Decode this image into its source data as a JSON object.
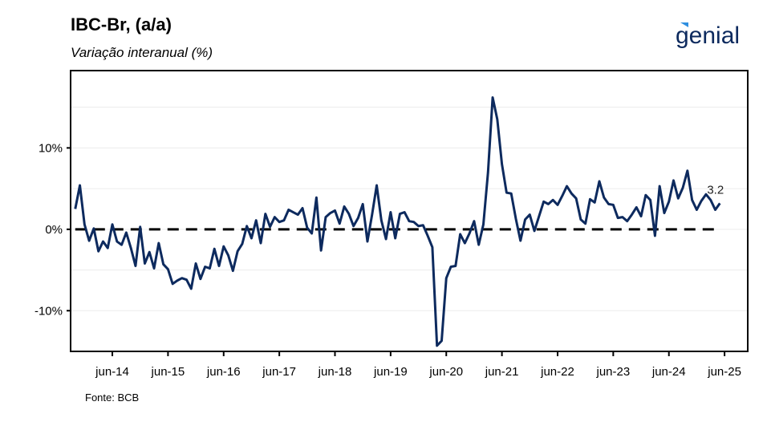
{
  "header": {
    "title": "IBC-Br, (a/a)",
    "subtitle": "Variação interanual (%)",
    "logo_text": "genial"
  },
  "footer": {
    "source": "Fonte: BCB"
  },
  "colors": {
    "line": "#0d2a5e",
    "zero_line": "#000000",
    "grid": "#ececec",
    "logo": "#0d2a5e",
    "logo_accent": "#2f8fe0"
  },
  "chart_data": {
    "type": "line",
    "title": "IBC-Br, (a/a)",
    "subtitle": "Variação interanual (%)",
    "xlabel": "",
    "ylabel": "",
    "x_ticks": [
      "jun-14",
      "jun-15",
      "jun-16",
      "jun-17",
      "jun-18",
      "jun-19",
      "jun-20",
      "jun-21",
      "jun-22",
      "jun-23",
      "jun-24",
      "jun-25"
    ],
    "y_ticks": [
      10,
      0,
      -10
    ],
    "y_tick_labels": [
      "10%",
      "0%",
      "-10%"
    ],
    "ylim": [
      -15,
      19.5
    ],
    "xlim": [
      "2013-09",
      "2025-11"
    ],
    "grid": "horizontal",
    "zero_line": "dashed",
    "last_value_label": "3.2",
    "series": [
      {
        "start": "2013-10",
        "frequency": "monthly",
        "values": [
          2.5,
          5.4,
          0.6,
          -1.4,
          0.1,
          -2.7,
          -1.5,
          -2.3,
          0.6,
          -1.5,
          -1.9,
          -0.4,
          -2.3,
          -4.5,
          0.3,
          -4.2,
          -2.8,
          -4.8,
          -1.7,
          -4.3,
          -4.9,
          -6.7,
          -6.3,
          -6.0,
          -6.2,
          -7.3,
          -4.2,
          -6.1,
          -4.6,
          -4.8,
          -2.4,
          -4.5,
          -2.1,
          -3.2,
          -5.1,
          -2.7,
          -1.8,
          0.4,
          -1.1,
          1.1,
          -1.7,
          1.9,
          0.3,
          1.5,
          0.9,
          1.1,
          2.4,
          2.1,
          1.8,
          2.6,
          0.2,
          -0.5,
          3.9,
          -2.6,
          1.5,
          2.0,
          2.3,
          0.7,
          2.8,
          1.9,
          0.4,
          1.4,
          3.1,
          -1.5,
          1.8,
          5.4,
          1.1,
          -1.2,
          2.1,
          -1.1,
          1.9,
          2.1,
          1.0,
          0.9,
          0.4,
          0.5,
          -0.8,
          -2.2,
          -14.3,
          -13.7,
          -6.0,
          -4.6,
          -4.5,
          -0.6,
          -1.7,
          -0.5,
          1.0,
          -1.9,
          0.6,
          7.0,
          16.2,
          13.5,
          8.0,
          4.5,
          4.4,
          1.3,
          -1.4,
          1.2,
          1.8,
          -0.2,
          1.6,
          3.4,
          3.1,
          3.6,
          3.0,
          4.1,
          5.3,
          4.4,
          3.8,
          1.2,
          0.7,
          3.7,
          3.3,
          5.9,
          3.9,
          3.1,
          3.0,
          1.4,
          1.5,
          1.0,
          1.8,
          2.7,
          1.6,
          4.2,
          3.6,
          -0.8,
          5.3,
          2.0,
          3.4,
          6.0,
          3.8,
          5.1,
          7.2,
          3.6,
          2.4,
          3.5,
          4.3,
          3.6,
          2.4,
          3.2
        ]
      }
    ]
  }
}
